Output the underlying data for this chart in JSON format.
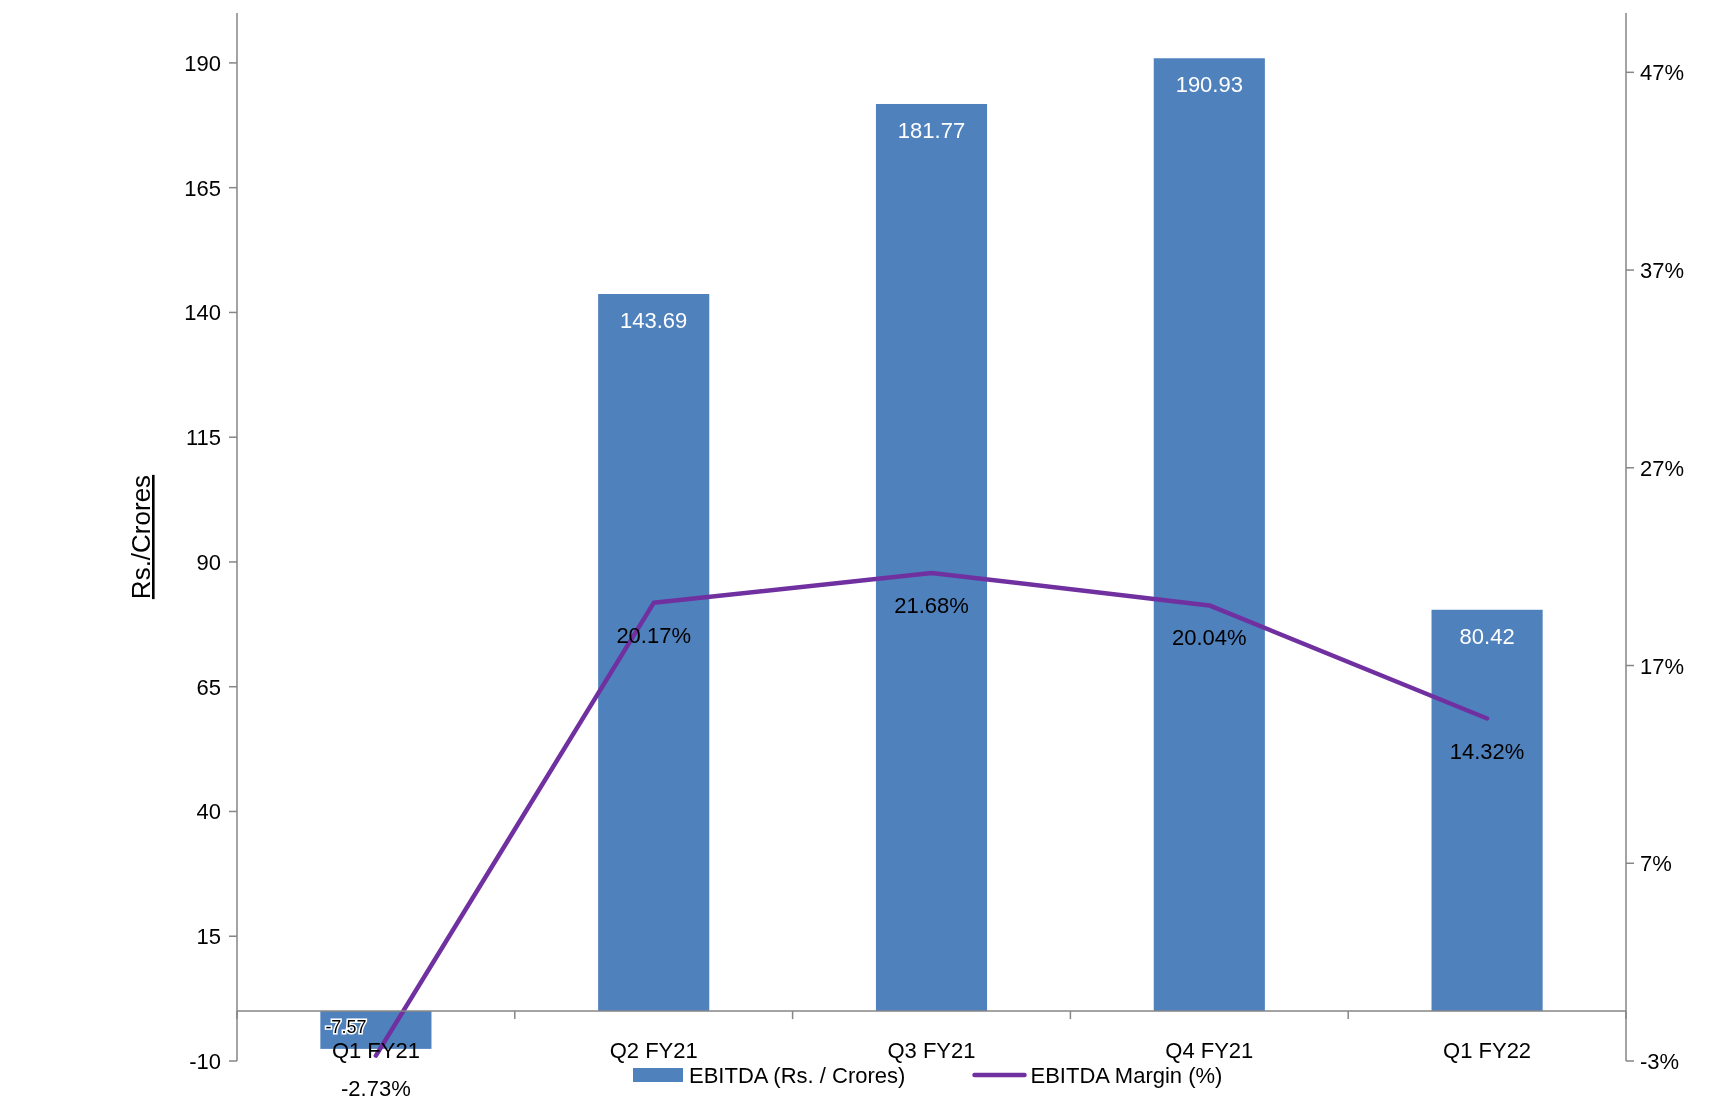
{
  "chart_data": {
    "type": "bar",
    "ylabel": "Rs./Crores",
    "categories": [
      "Q1 FY21",
      "Q2 FY21",
      "Q3 FY21",
      "Q4 FY21",
      "Q1 FY22"
    ],
    "series": [
      {
        "name": "EBITDA (Rs. / Crores)",
        "color": "#4f81bd",
        "values": [
          -7.57,
          143.69,
          181.77,
          190.93,
          80.42
        ]
      },
      {
        "name": "EBITDA Margin (%)",
        "type": "line",
        "axis": "y2",
        "color": "#7030a0",
        "values": [
          -2.73,
          20.17,
          21.68,
          20.04,
          14.32
        ],
        "value_labels": [
          "-2.73%",
          "20.17%",
          "21.68%",
          "20.04%",
          "14.32%"
        ]
      }
    ],
    "ylim": [
      -10,
      200
    ],
    "yticks": [
      -10,
      15,
      40,
      65,
      90,
      115,
      140,
      165,
      190
    ],
    "y2lim": [
      -3,
      50
    ],
    "y2ticks": [
      {
        "value": -3,
        "label": "-3%"
      },
      {
        "value": 7,
        "label": "7%"
      },
      {
        "value": 17,
        "label": "17%"
      },
      {
        "value": 27,
        "label": "27%"
      },
      {
        "value": 37,
        "label": "37%"
      },
      {
        "value": 47,
        "label": "47%"
      }
    ],
    "data_labels": true,
    "legend": "bottom",
    "grid": false,
    "marker": "none",
    "line_style": "solid"
  }
}
